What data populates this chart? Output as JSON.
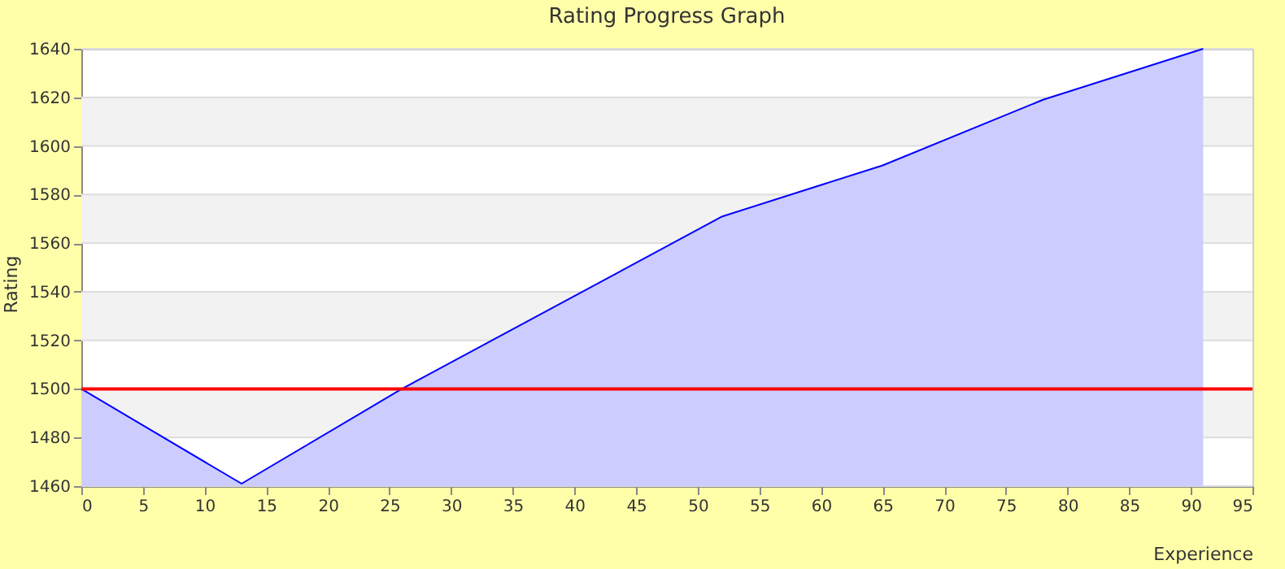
{
  "chart_data": {
    "type": "area",
    "title": "Rating Progress Graph",
    "xlabel": "Experience",
    "ylabel": "Rating",
    "x": [
      0,
      13,
      26,
      52,
      65,
      78,
      91
    ],
    "series": [
      {
        "color": "#0000ff",
        "values": [
          1500,
          1461,
          1500,
          1571,
          1592,
          1619,
          1640
        ]
      }
    ],
    "xlim": [
      0,
      95
    ],
    "xticks": [
      0,
      5,
      10,
      15,
      20,
      25,
      30,
      35,
      40,
      45,
      50,
      55,
      60,
      65,
      70,
      75,
      80,
      85,
      90,
      95
    ],
    "ylim": [
      1460,
      1640
    ],
    "yticks": [
      1460,
      1480,
      1500,
      1520,
      1540,
      1560,
      1580,
      1600,
      1620,
      1640
    ],
    "grid": "y",
    "marker": "none",
    "line_style": "solid",
    "ref_lines": [
      {
        "axis": "y",
        "value": 1500,
        "color": "#ff0000"
      }
    ]
  }
}
